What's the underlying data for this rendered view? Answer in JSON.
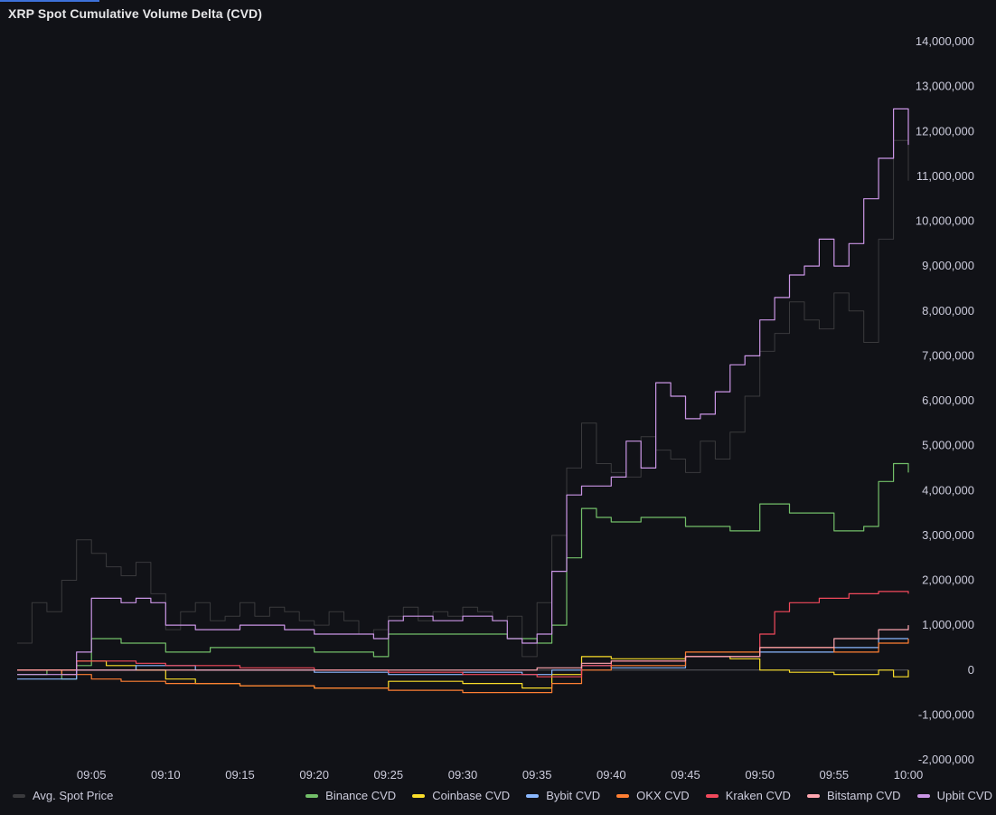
{
  "panel": {
    "title": "XRP Spot Cumulative Volume Delta (CVD)"
  },
  "chart_data": {
    "type": "line",
    "title": "XRP Spot Cumulative Volume Delta (CVD)",
    "x_tick_labels": [
      "09:05",
      "09:10",
      "09:15",
      "09:20",
      "09:25",
      "09:30",
      "09:35",
      "09:40",
      "09:45",
      "09:50",
      "09:55",
      "10:00"
    ],
    "x_range": [
      "09:00",
      "10:00"
    ],
    "y_ticks": [
      14000000,
      13000000,
      12000000,
      11000000,
      10000000,
      9000000,
      8000000,
      7000000,
      6000000,
      5000000,
      4000000,
      3000000,
      2000000,
      1000000,
      0,
      -1000000,
      -2000000
    ],
    "y_tick_labels": [
      "14,000,000",
      "13,000,000",
      "12,000,000",
      "11,000,000",
      "10,000,000",
      "9,000,000",
      "8,000,000",
      "7,000,000",
      "6,000,000",
      "5,000,000",
      "4,000,000",
      "3,000,000",
      "2,000,000",
      "1,000,000",
      "0",
      "-1,000,000",
      "-2,000,000"
    ],
    "ylim": [
      -2000000,
      14000000
    ],
    "y_axis_position": "right",
    "grid": false,
    "legend_left": [
      "Avg. Spot Price"
    ],
    "legend_right": [
      "Binance CVD",
      "Coinbase CVD",
      "Bybit CVD",
      "OKX CVD",
      "Kraken CVD",
      "Bitstamp CVD",
      "Upbit CVD"
    ],
    "series": [
      {
        "name": "Avg. Spot Price",
        "color": "#3a3a3d",
        "unscaled_overlay": true,
        "x": [
          "09:00",
          "09:01",
          "09:02",
          "09:03",
          "09:04",
          "09:05",
          "09:06",
          "09:07",
          "09:08",
          "09:09",
          "09:10",
          "09:11",
          "09:12",
          "09:13",
          "09:14",
          "09:15",
          "09:16",
          "09:17",
          "09:18",
          "09:19",
          "09:20",
          "09:21",
          "09:22",
          "09:23",
          "09:24",
          "09:25",
          "09:26",
          "09:27",
          "09:28",
          "09:29",
          "09:30",
          "09:31",
          "09:32",
          "09:33",
          "09:34",
          "09:35",
          "09:36",
          "09:37",
          "09:38",
          "09:39",
          "09:40",
          "09:41",
          "09:42",
          "09:43",
          "09:44",
          "09:45",
          "09:46",
          "09:47",
          "09:48",
          "09:49",
          "09:50",
          "09:51",
          "09:52",
          "09:53",
          "09:54",
          "09:55",
          "09:56",
          "09:57",
          "09:58",
          "09:59",
          "10:00"
        ],
        "values": [
          600000,
          1500000,
          1300000,
          2000000,
          2900000,
          2600000,
          2300000,
          2100000,
          2400000,
          1700000,
          900000,
          1300000,
          1500000,
          1100000,
          1200000,
          1500000,
          1200000,
          1400000,
          1300000,
          1100000,
          1000000,
          1300000,
          1100000,
          800000,
          900000,
          1200000,
          1400000,
          1100000,
          1300000,
          1200000,
          1400000,
          1300000,
          1100000,
          1200000,
          300000,
          1500000,
          3000000,
          4500000,
          5500000,
          4600000,
          4400000,
          4300000,
          5200000,
          4900000,
          4700000,
          4400000,
          5100000,
          4700000,
          5300000,
          6100000,
          7100000,
          7500000,
          8200000,
          7800000,
          7600000,
          8400000,
          8000000,
          7300000,
          9600000,
          11800000,
          10900000
        ]
      },
      {
        "name": "Binance CVD",
        "color": "#73bf69",
        "x": [
          "09:00",
          "09:02",
          "09:03",
          "09:04",
          "09:05",
          "09:07",
          "09:10",
          "09:13",
          "09:15",
          "09:18",
          "09:20",
          "09:24",
          "09:25",
          "09:27",
          "09:30",
          "09:33",
          "09:35",
          "09:36",
          "09:37",
          "09:38",
          "09:39",
          "09:40",
          "09:42",
          "09:45",
          "09:48",
          "09:49",
          "09:50",
          "09:52",
          "09:55",
          "09:57",
          "09:58",
          "09:59",
          "10:00"
        ],
        "values": [
          -100000,
          0,
          -200000,
          100000,
          700000,
          600000,
          400000,
          500000,
          500000,
          500000,
          400000,
          300000,
          800000,
          800000,
          800000,
          700000,
          600000,
          1000000,
          2500000,
          3600000,
          3400000,
          3300000,
          3400000,
          3200000,
          3100000,
          3100000,
          3700000,
          3500000,
          3100000,
          3200000,
          4200000,
          4600000,
          4400000
        ]
      },
      {
        "name": "Coinbase CVD",
        "color": "#fade2a",
        "x": [
          "09:00",
          "09:04",
          "09:06",
          "09:08",
          "09:10",
          "09:12",
          "09:15",
          "09:20",
          "09:25",
          "09:30",
          "09:34",
          "09:36",
          "09:38",
          "09:40",
          "09:45",
          "09:48",
          "09:50",
          "09:52",
          "09:55",
          "09:57",
          "09:58",
          "09:59",
          "10:00"
        ],
        "values": [
          0,
          200000,
          100000,
          0,
          -200000,
          -300000,
          -350000,
          -400000,
          -250000,
          -300000,
          -400000,
          -100000,
          300000,
          250000,
          300000,
          250000,
          0,
          -50000,
          -100000,
          -100000,
          0,
          -150000,
          0
        ]
      },
      {
        "name": "Bybit CVD",
        "color": "#8ab8ff",
        "x": [
          "09:00",
          "09:04",
          "09:08",
          "09:12",
          "09:16",
          "09:20",
          "09:25",
          "09:30",
          "09:34",
          "09:36",
          "09:38",
          "09:40",
          "09:45",
          "09:50",
          "09:55",
          "09:58",
          "10:00"
        ],
        "values": [
          -200000,
          0,
          100000,
          0,
          0,
          -50000,
          -100000,
          -50000,
          -100000,
          0,
          100000,
          50000,
          300000,
          400000,
          500000,
          700000,
          700000
        ]
      },
      {
        "name": "OKX CVD",
        "color": "#ff7f33",
        "x": [
          "09:00",
          "09:03",
          "09:05",
          "09:07",
          "09:10",
          "09:15",
          "09:20",
          "09:25",
          "09:30",
          "09:34",
          "09:36",
          "09:38",
          "09:40",
          "09:45",
          "09:50",
          "09:55",
          "09:58",
          "10:00"
        ],
        "values": [
          0,
          -100000,
          -200000,
          -250000,
          -300000,
          -350000,
          -400000,
          -450000,
          -500000,
          -500000,
          -300000,
          0,
          100000,
          400000,
          500000,
          400000,
          600000,
          700000
        ]
      },
      {
        "name": "Kraken CVD",
        "color": "#f2495c",
        "x": [
          "09:00",
          "09:04",
          "09:08",
          "09:10",
          "09:15",
          "09:20",
          "09:25",
          "09:30",
          "09:35",
          "09:38",
          "09:40",
          "09:45",
          "09:50",
          "09:51",
          "09:52",
          "09:54",
          "09:56",
          "09:58",
          "10:00"
        ],
        "values": [
          0,
          200000,
          150000,
          100000,
          50000,
          0,
          -50000,
          -100000,
          -150000,
          100000,
          200000,
          300000,
          800000,
          1300000,
          1500000,
          1600000,
          1700000,
          1750000,
          1700000
        ]
      },
      {
        "name": "Bitstamp CVD",
        "color": "#ffa6b0",
        "x": [
          "09:00",
          "09:05",
          "09:10",
          "09:15",
          "09:20",
          "09:25",
          "09:30",
          "09:35",
          "09:38",
          "09:40",
          "09:45",
          "09:50",
          "09:55",
          "09:58",
          "10:00"
        ],
        "values": [
          0,
          0,
          0,
          0,
          0,
          0,
          0,
          50000,
          150000,
          200000,
          300000,
          500000,
          700000,
          900000,
          1000000
        ]
      },
      {
        "name": "Upbit CVD",
        "color": "#ca95e5",
        "x": [
          "09:00",
          "09:03",
          "09:04",
          "09:05",
          "09:07",
          "09:08",
          "09:09",
          "09:10",
          "09:12",
          "09:15",
          "09:18",
          "09:20",
          "09:22",
          "09:24",
          "09:25",
          "09:26",
          "09:28",
          "09:30",
          "09:32",
          "09:33",
          "09:34",
          "09:35",
          "09:36",
          "09:37",
          "09:38",
          "09:40",
          "09:41",
          "09:42",
          "09:43",
          "09:44",
          "09:45",
          "09:46",
          "09:47",
          "09:48",
          "09:49",
          "09:50",
          "09:51",
          "09:52",
          "09:53",
          "09:54",
          "09:55",
          "09:56",
          "09:57",
          "09:58",
          "09:59",
          "10:00"
        ],
        "values": [
          -100000,
          -100000,
          400000,
          1600000,
          1500000,
          1600000,
          1500000,
          1000000,
          900000,
          1000000,
          900000,
          800000,
          800000,
          700000,
          1100000,
          1200000,
          1100000,
          1200000,
          1100000,
          700000,
          600000,
          800000,
          2200000,
          3900000,
          4100000,
          4300000,
          5100000,
          4500000,
          6400000,
          6100000,
          5600000,
          5700000,
          6200000,
          6800000,
          7000000,
          7800000,
          8300000,
          8800000,
          9000000,
          9600000,
          9000000,
          9500000,
          10500000,
          11400000,
          12500000,
          11700000
        ]
      }
    ]
  }
}
